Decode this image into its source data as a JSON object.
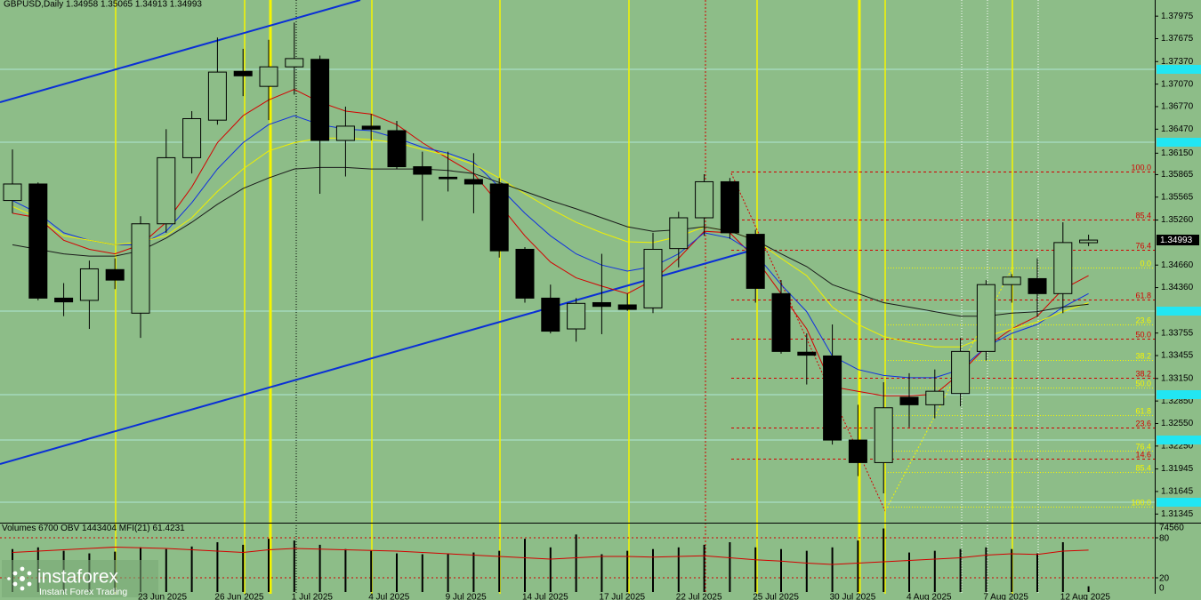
{
  "chart_data": [
    {
      "type": "candlestick",
      "title": "GBPUSD,Daily  1.34958 1.35065 1.34913 1.34993",
      "categories": [
        null,
        null,
        null,
        null,
        null,
        "23 Jun 2025",
        null,
        null,
        "26 Jun 2025",
        null,
        null,
        "1 Jul 2025",
        null,
        null,
        "4 Jul 2025",
        null,
        null,
        "9 Jul 2025",
        null,
        null,
        "14 Jul 2025",
        null,
        null,
        "17 Jul 2025",
        null,
        null,
        "22 Jul 2025",
        null,
        null,
        "25 Jul 2025",
        null,
        null,
        "30 Jul 2025",
        null,
        null,
        "4 Aug 2025",
        null,
        null,
        "7 Aug 2025",
        null,
        null,
        "12 Aug 2025",
        null
      ],
      "open": [
        1.3552,
        1.3574,
        1.3422,
        1.3419,
        1.346,
        1.3402,
        1.3521,
        1.3609,
        1.3659,
        1.3724,
        1.3704,
        1.373,
        1.374,
        1.3632,
        1.3651,
        1.3645,
        1.3597,
        1.3583,
        1.358,
        1.3574,
        1.3487,
        1.3422,
        1.3381,
        1.3416,
        1.3413,
        1.3409,
        1.3488,
        1.3529,
        1.3577,
        1.3507,
        1.3428,
        1.335,
        1.3345,
        1.3233,
        1.3203,
        1.329,
        1.328,
        1.3295,
        1.3351,
        1.344,
        1.3448,
        1.3428,
        1.34958
      ],
      "high": [
        1.362,
        1.3576,
        1.3442,
        1.3472,
        1.3475,
        1.3531,
        1.3647,
        1.3671,
        1.3769,
        1.3754,
        1.3766,
        1.3789,
        1.3745,
        1.3677,
        1.3667,
        1.3658,
        1.3617,
        1.3617,
        1.3615,
        1.3582,
        1.349,
        1.344,
        1.3422,
        1.3481,
        1.3428,
        1.3509,
        1.3537,
        1.3587,
        1.3582,
        1.3513,
        1.3446,
        1.3375,
        1.3387,
        1.328,
        1.331,
        1.3322,
        1.3327,
        1.3369,
        1.3446,
        1.3454,
        1.3475,
        1.3523,
        1.35065
      ],
      "low": [
        1.3535,
        1.3419,
        1.3398,
        1.3381,
        1.3434,
        1.3369,
        1.3509,
        1.3588,
        1.3653,
        1.3691,
        1.3659,
        1.3693,
        1.3561,
        1.3584,
        1.3632,
        1.3594,
        1.3525,
        1.3564,
        1.3535,
        1.3476,
        1.3416,
        1.3375,
        1.3364,
        1.3374,
        1.3405,
        1.3402,
        1.3463,
        1.3505,
        1.3501,
        1.3416,
        1.3348,
        1.3307,
        1.3227,
        1.3185,
        1.3162,
        1.325,
        1.3262,
        1.3278,
        1.3339,
        1.3416,
        1.3397,
        1.3402,
        1.34913
      ],
      "close": [
        1.3574,
        1.3422,
        1.3417,
        1.3461,
        1.3446,
        1.3521,
        1.3609,
        1.3661,
        1.3723,
        1.3718,
        1.373,
        1.3741,
        1.3632,
        1.3651,
        1.3647,
        1.3597,
        1.3587,
        1.3581,
        1.3574,
        1.3485,
        1.3422,
        1.3378,
        1.3415,
        1.3411,
        1.3407,
        1.3487,
        1.3529,
        1.3577,
        1.3509,
        1.3435,
        1.3351,
        1.3346,
        1.3233,
        1.3203,
        1.3276,
        1.328,
        1.3298,
        1.3351,
        1.344,
        1.345,
        1.3428,
        1.3496,
        1.34993
      ],
      "up_color": "#8dbd88",
      "down_color": "#000000",
      "overlays": [
        {
          "color": "#d40000",
          "values": [
            1.3535,
            1.3529,
            1.3499,
            1.3487,
            1.3481,
            1.3493,
            1.3523,
            1.357,
            1.3629,
            1.3665,
            1.3686,
            1.37,
            1.3683,
            1.3671,
            1.3667,
            1.3653,
            1.3629,
            1.3608,
            1.3588,
            1.3547,
            1.3505,
            1.347,
            1.3449,
            1.3438,
            1.3428,
            1.3446,
            1.3475,
            1.3511,
            1.3509,
            1.3475,
            1.3428,
            1.3381,
            1.3304,
            1.3298,
            1.3292,
            1.3292,
            1.3294,
            1.3322,
            1.3357,
            1.3381,
            1.3398,
            1.3434,
            1.3452
          ]
        },
        {
          "color": "#1030e0",
          "values": [
            1.3552,
            1.3535,
            1.3509,
            1.3499,
            1.3493,
            1.3493,
            1.3511,
            1.3549,
            1.3594,
            1.3629,
            1.3653,
            1.3665,
            1.3653,
            1.3647,
            1.3645,
            1.3635,
            1.3623,
            1.3615,
            1.3603,
            1.357,
            1.3535,
            1.3505,
            1.3481,
            1.3466,
            1.3458,
            1.3464,
            1.3481,
            1.3509,
            1.3502,
            1.3481,
            1.344,
            1.3404,
            1.3345,
            1.3327,
            1.3319,
            1.3316,
            1.3316,
            1.3327,
            1.3357,
            1.3375,
            1.3387,
            1.341,
            1.3428
          ]
        },
        {
          "color": "#f0f000",
          "values": [
            1.3544,
            1.3529,
            1.3505,
            1.3499,
            1.3493,
            1.3497,
            1.3505,
            1.3529,
            1.3564,
            1.3594,
            1.3618,
            1.3629,
            1.3635,
            1.3635,
            1.3633,
            1.3629,
            1.362,
            1.3612,
            1.36,
            1.3582,
            1.3561,
            1.3541,
            1.3523,
            1.3509,
            1.3497,
            1.3496,
            1.3504,
            1.3517,
            1.3511,
            1.3499,
            1.3475,
            1.3452,
            1.341,
            1.3387,
            1.3371,
            1.3363,
            1.3357,
            1.3357,
            1.3371,
            1.3381,
            1.339,
            1.3404,
            1.3416
          ]
        },
        {
          "color": "#1a1a1a",
          "values": [
            1.3493,
            1.3487,
            1.3481,
            1.3478,
            1.3478,
            1.3485,
            1.3502,
            1.3523,
            1.3547,
            1.3568,
            1.3582,
            1.3594,
            1.3596,
            1.3596,
            1.3594,
            1.3594,
            1.3594,
            1.3592,
            1.3588,
            1.3576,
            1.3564,
            1.3552,
            1.3541,
            1.3529,
            1.3517,
            1.3511,
            1.3513,
            1.3517,
            1.3511,
            1.3499,
            1.3481,
            1.3464,
            1.344,
            1.3428,
            1.3416,
            1.341,
            1.3404,
            1.3398,
            1.3398,
            1.3402,
            1.3404,
            1.341,
            1.3414
          ]
        }
      ],
      "ylim": [
        1.3123,
        1.3819
      ],
      "yticks": [
        1.37975,
        1.37675,
        {
          "value": 1.3737,
          "label": "1.37370"
        },
        {
          "value": 1.3707,
          "label": "1.37070"
        },
        {
          "value": 1.3677,
          "label": "1.36770"
        },
        {
          "value": 1.3647,
          "label": "1.36470"
        },
        {
          "value": 1.3615,
          "label": "1.36150"
        },
        1.35865,
        1.35565,
        {
          "value": 1.3526,
          "label": "1.35260"
        },
        {
          "value": 1.3466,
          "label": "1.34660"
        },
        {
          "value": 1.3436,
          "label": "1.34360"
        },
        1.33755,
        1.33455,
        {
          "value": 1.3315,
          "label": "1.33150"
        },
        {
          "value": 1.3285,
          "label": "1.32850"
        },
        {
          "value": 1.3255,
          "label": "1.32550"
        },
        {
          "value": 1.3225,
          "label": "1.32250"
        },
        1.31945,
        1.31645,
        1.31345
      ],
      "fibonacci_labels": [
        "100.0",
        "85.4",
        "76.4",
        "0.0",
        "61.8",
        "23.6",
        "50.0",
        "38.2",
        "38.2",
        "50.0",
        "61.8",
        "23.6",
        "76.4",
        "14.6",
        "85.4",
        "100.0"
      ],
      "logo": {
        "name": "instaforex",
        "tagline": "Instant Forex Trading"
      }
    },
    {
      "type": "bar",
      "title": "Volumes 6700  OBV 1443404  MFI(21) 61.4231",
      "color": "#000000",
      "values": [
        50000,
        52000,
        48000,
        45000,
        47000,
        52000,
        50000,
        53000,
        58000,
        55000,
        62000,
        60000,
        55000,
        50000,
        48000,
        45000,
        44000,
        45000,
        46000,
        48000,
        62000,
        52000,
        67000,
        44000,
        48000,
        50000,
        52000,
        55000,
        58000,
        52000,
        50000,
        48000,
        52000,
        60000,
        74000,
        46000,
        48000,
        50000,
        52000,
        50000,
        45000,
        58000,
        6700
      ],
      "ylim": [
        0,
        74560
      ],
      "yticks": [
        0,
        74560
      ],
      "series": [
        {
          "color": "#d40000",
          "axis": "y2",
          "values": [
            58,
            60,
            62,
            64,
            66,
            65,
            64,
            62,
            60,
            58,
            62,
            64,
            63,
            62,
            61,
            60,
            58,
            56,
            54,
            52,
            50,
            48,
            50,
            52,
            52,
            51,
            52,
            53,
            50,
            47,
            45,
            42,
            40,
            42,
            44,
            46,
            48,
            50,
            54,
            56,
            55,
            60,
            61.4231
          ]
        }
      ],
      "y2lim": [
        0,
        100
      ],
      "y2ticks": [
        20,
        80
      ]
    }
  ]
}
